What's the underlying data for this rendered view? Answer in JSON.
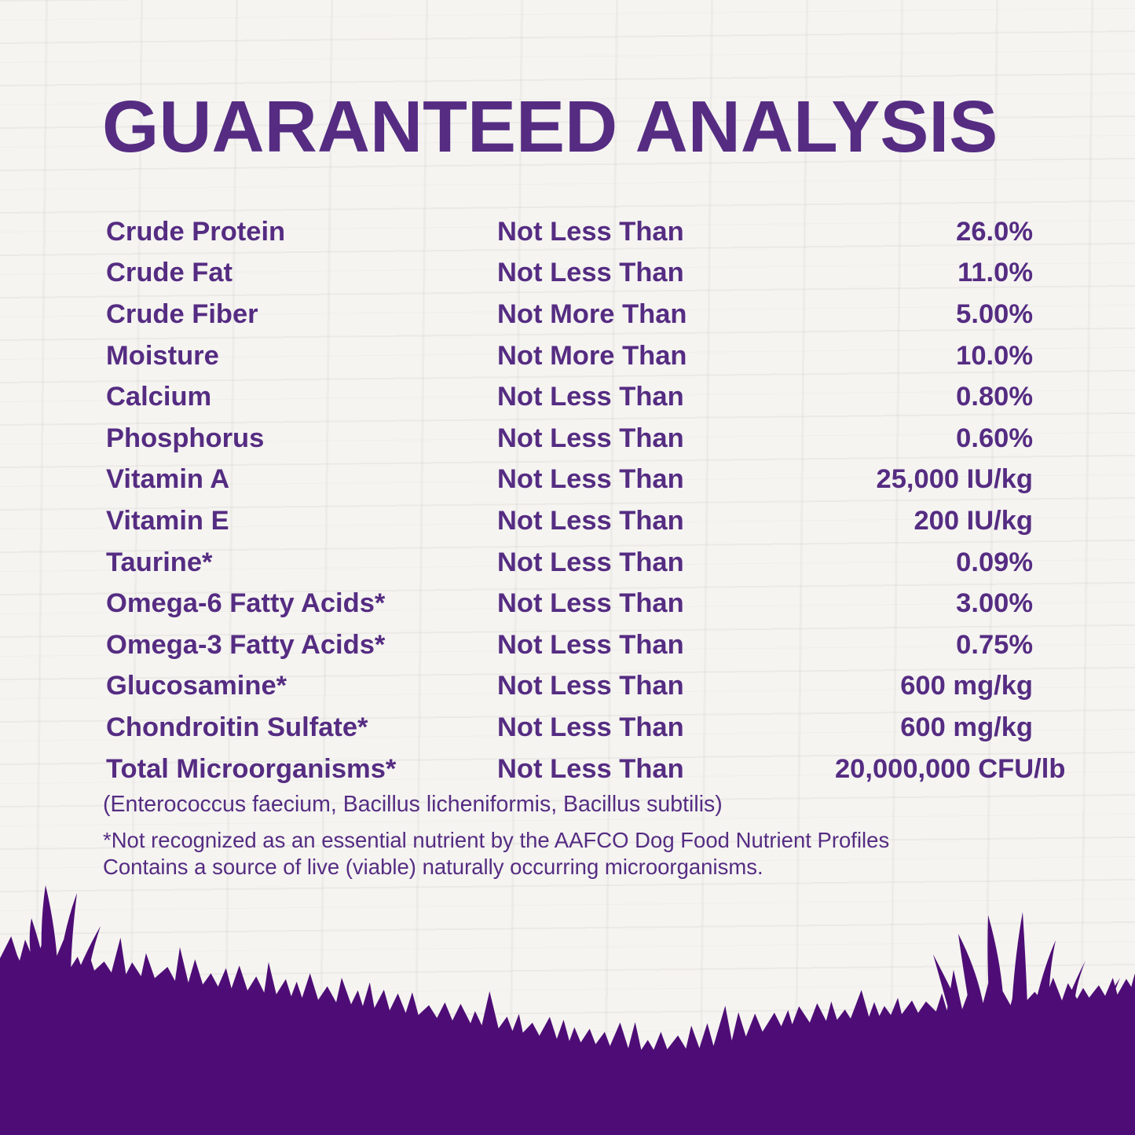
{
  "title": "GUARANTEED ANALYSIS",
  "colors": {
    "text": "#552c82",
    "grass": "#4e0d76",
    "background": "#f5f4f1"
  },
  "table": {
    "rows": [
      {
        "nutrient": "Crude Protein",
        "qualifier": "Not Less Than",
        "value": "26.0%"
      },
      {
        "nutrient": "Crude Fat",
        "qualifier": "Not Less Than",
        "value": "11.0%"
      },
      {
        "nutrient": "Crude Fiber",
        "qualifier": "Not More Than",
        "value": "5.00%"
      },
      {
        "nutrient": "Moisture",
        "qualifier": "Not More Than",
        "value": "10.0%"
      },
      {
        "nutrient": "Calcium",
        "qualifier": "Not Less Than",
        "value": "0.80%"
      },
      {
        "nutrient": "Phosphorus",
        "qualifier": "Not Less Than",
        "value": "0.60%"
      },
      {
        "nutrient": "Vitamin A",
        "qualifier": "Not Less Than",
        "value": "25,000 IU/kg"
      },
      {
        "nutrient": "Vitamin E",
        "qualifier": "Not Less Than",
        "value": "200 IU/kg"
      },
      {
        "nutrient": "Taurine*",
        "qualifier": "Not Less Than",
        "value": "0.09%"
      },
      {
        "nutrient": "Omega-6 Fatty Acids*",
        "qualifier": "Not Less Than",
        "value": "3.00%"
      },
      {
        "nutrient": "Omega-3 Fatty Acids*",
        "qualifier": "Not Less Than",
        "value": "0.75%"
      },
      {
        "nutrient": "Glucosamine*",
        "qualifier": "Not Less Than",
        "value": "600 mg/kg"
      },
      {
        "nutrient": "Chondroitin Sulfate*",
        "qualifier": "Not Less Than",
        "value": "600 mg/kg"
      },
      {
        "nutrient": "Total Microorganisms*",
        "qualifier": "Not Less Than",
        "value": "20,000,000 CFU/lb"
      }
    ]
  },
  "species_note": "(Enterococcus faecium, Bacillus licheniformis, Bacillus subtilis)",
  "footnote": {
    "line1": "*Not recognized as an essential nutrient by the AAFCO Dog Food Nutrient Profiles",
    "line2": "Contains a source of live (viable) naturally occurring microorganisms."
  }
}
